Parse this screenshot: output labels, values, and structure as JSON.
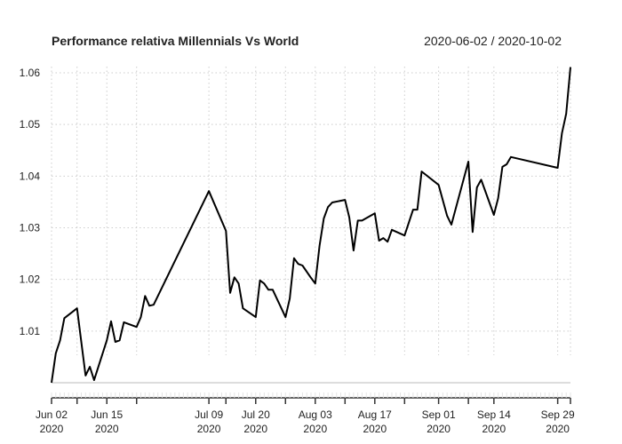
{
  "chart_data": {
    "type": "line",
    "title": "Performance relativa Millennials Vs World",
    "date_range": "2020-06-02 / 2020-10-02",
    "xlabel": "",
    "ylabel": "",
    "x_units": "observation index",
    "xlim": [
      0,
      122
    ],
    "ylim": [
      1.0,
      1.06
    ],
    "grid": true,
    "y_ticks": [
      {
        "value": 1.01,
        "label": "1.01"
      },
      {
        "value": 1.02,
        "label": "1.02"
      },
      {
        "value": 1.03,
        "label": "1.03"
      },
      {
        "value": 1.04,
        "label": "1.04"
      },
      {
        "value": 1.05,
        "label": "1.05"
      },
      {
        "value": 1.06,
        "label": "1.06"
      }
    ],
    "x_ticks": [
      {
        "value": 0,
        "label": "Jun 02",
        "year": "2020"
      },
      {
        "value": 6,
        "label": "",
        "year": ""
      },
      {
        "value": 13,
        "label": "Jun 15",
        "year": "2020"
      },
      {
        "value": 20,
        "label": "",
        "year": ""
      },
      {
        "value": 37,
        "label": "Jul 09",
        "year": "2020"
      },
      {
        "value": 41,
        "label": "",
        "year": ""
      },
      {
        "value": 48,
        "label": "Jul 20",
        "year": "2020"
      },
      {
        "value": 55,
        "label": "",
        "year": ""
      },
      {
        "value": 62,
        "label": "Aug 03",
        "year": "2020"
      },
      {
        "value": 69,
        "label": "",
        "year": ""
      },
      {
        "value": 76,
        "label": "Aug 17",
        "year": "2020"
      },
      {
        "value": 83,
        "label": "",
        "year": ""
      },
      {
        "value": 91,
        "label": "Sep 01",
        "year": "2020"
      },
      {
        "value": 98,
        "label": "",
        "year": ""
      },
      {
        "value": 104,
        "label": "Sep 14",
        "year": "2020"
      },
      {
        "value": 119,
        "label": "Sep 29",
        "year": "2020"
      },
      {
        "value": 122,
        "label": "",
        "year": ""
      }
    ],
    "series": [
      {
        "name": "Millennials Vs World",
        "color": "#000000",
        "x": [
          0,
          1,
          2,
          3,
          6,
          8,
          9,
          10,
          13,
          14,
          15,
          16,
          17,
          20,
          21,
          22,
          23,
          24,
          37,
          41,
          42,
          43,
          44,
          45,
          48,
          49,
          50,
          51,
          52,
          55,
          56,
          57,
          58,
          59,
          61,
          62,
          63,
          64,
          65,
          66,
          69,
          70,
          71,
          72,
          73,
          76,
          77,
          78,
          79,
          80,
          83,
          85,
          86,
          87,
          91,
          93,
          94,
          98,
          99,
          100,
          101,
          104,
          105,
          106,
          107,
          108,
          119,
          120,
          121,
          122
        ],
        "y": [
          1.0,
          1.0057,
          1.0082,
          1.0125,
          1.0144,
          1.0014,
          1.0031,
          1.0005,
          1.0082,
          1.0119,
          1.0079,
          1.0082,
          1.0117,
          1.0108,
          1.0127,
          1.0168,
          1.0149,
          1.0151,
          1.0371,
          1.0294,
          1.0174,
          1.0204,
          1.0192,
          1.0144,
          1.0127,
          1.0198,
          1.0192,
          1.018,
          1.018,
          1.0127,
          1.0163,
          1.0241,
          1.023,
          1.0227,
          1.0203,
          1.0192,
          1.0265,
          1.0318,
          1.034,
          1.0349,
          1.0354,
          1.032,
          1.0256,
          1.0314,
          1.0314,
          1.0328,
          1.0275,
          1.028,
          1.0273,
          1.0296,
          1.0285,
          1.0335,
          1.0335,
          1.0409,
          1.0383,
          1.0323,
          1.0306,
          1.0428,
          1.0292,
          1.0378,
          1.0393,
          1.0325,
          1.0357,
          1.0418,
          1.0423,
          1.0437,
          1.0416,
          1.0483,
          1.0521,
          1.0611
        ]
      }
    ],
    "baseline": 1.0
  }
}
